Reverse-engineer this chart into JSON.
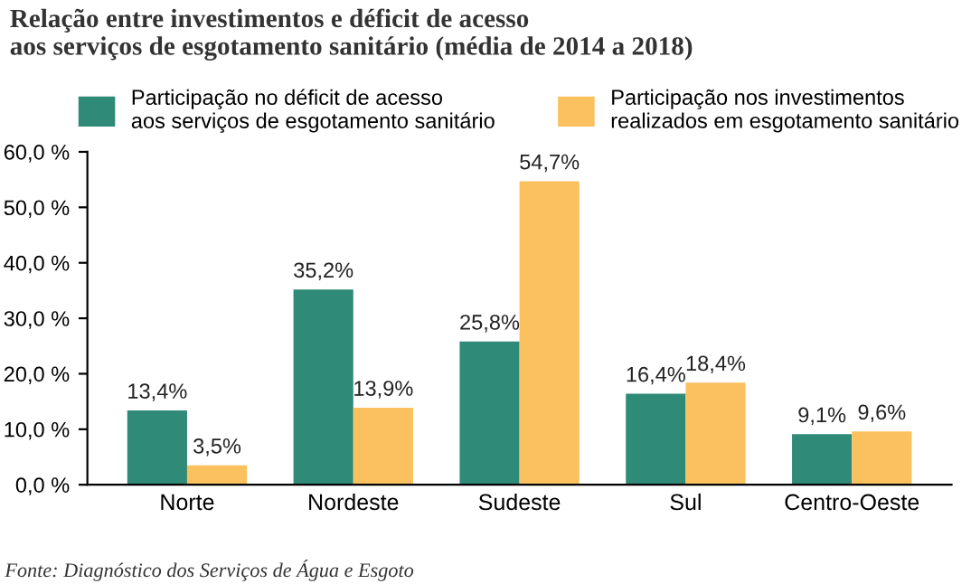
{
  "chart_data": {
    "type": "bar",
    "title": "Relação entre investimentos e déficit de acesso\naos serviços de esgotamento sanitário (média de 2014 a 2018)",
    "categories": [
      "Norte",
      "Nordeste",
      "Sudeste",
      "Sul",
      "Centro-Oeste"
    ],
    "series": [
      {
        "name": "Participação no déficit de acesso\naos serviços de esgotamento sanitário",
        "color": "#2f8a78",
        "values": [
          13.4,
          35.2,
          25.8,
          16.4,
          9.1
        ],
        "value_labels": [
          "13,4%",
          "35,2%",
          "25,8%",
          "16,4%",
          "9,1%"
        ]
      },
      {
        "name": "Participação nos investimentos\nrealizados em esgotamento sanitário",
        "color": "#fbc15e",
        "values": [
          3.5,
          13.9,
          54.7,
          18.4,
          9.6
        ],
        "value_labels": [
          "3,5%",
          "13,9%",
          "54,7%",
          "18,4%",
          "9,6%"
        ]
      }
    ],
    "ylim": [
      0,
      60
    ],
    "yticks": [
      {
        "value": 0,
        "label": "0,0 %"
      },
      {
        "value": 10,
        "label": "10,0 %"
      },
      {
        "value": 20,
        "label": "20,0 %"
      },
      {
        "value": 30,
        "label": "30,0 %"
      },
      {
        "value": 40,
        "label": "40,0 %"
      },
      {
        "value": 50,
        "label": "50,0 %"
      },
      {
        "value": 60,
        "label": "60,0 %"
      }
    ],
    "grid": false,
    "legend": "top",
    "annotations": [
      "Fonte: Diagnóstico dos Serviços de Água e Esgoto"
    ]
  }
}
